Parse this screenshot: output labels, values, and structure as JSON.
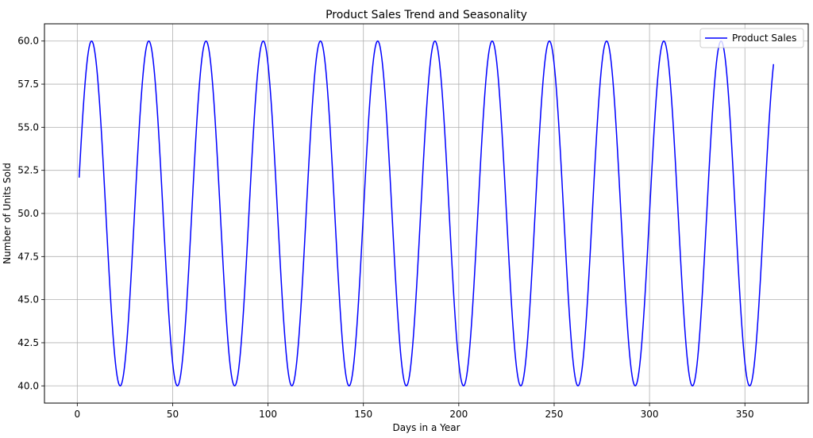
{
  "chart_data": {
    "type": "line",
    "title": "Product Sales Trend and Seasonality",
    "xlabel": "Days in a Year",
    "ylabel": "Number of Units Sold",
    "xlim": [
      -17.2,
      383.2
    ],
    "ylim": [
      39.0,
      61.0
    ],
    "xticks": [
      0,
      50,
      100,
      150,
      200,
      250,
      300,
      350
    ],
    "yticks": [
      40.0,
      42.5,
      45.0,
      47.5,
      50.0,
      52.5,
      55.0,
      57.5,
      60.0
    ],
    "grid": true,
    "legend_position": "top-right",
    "series": [
      {
        "name": "Product Sales",
        "color": "#0000ff",
        "x_start": 1,
        "x_end": 365,
        "mean": 50.0,
        "amplitude": 10.0,
        "period_days": 30,
        "peak_day": 7.5,
        "start_value": 52.1,
        "end_value": 58.7
      }
    ]
  }
}
